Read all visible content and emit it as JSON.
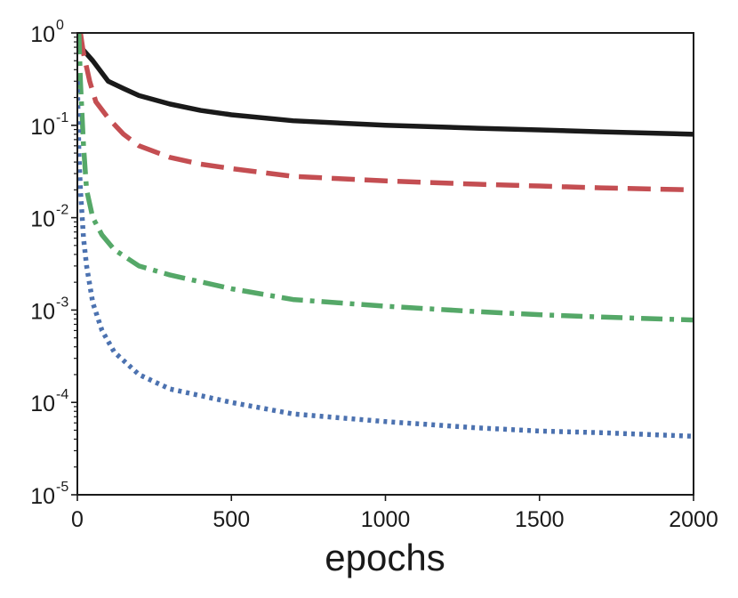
{
  "chart_data": {
    "type": "line",
    "title": "",
    "xlabel": "epochs",
    "ylabel": "",
    "xlim": [
      0,
      2000
    ],
    "ylim": [
      1e-05,
      1
    ],
    "yscale": "log",
    "grid": false,
    "legend": "none",
    "x_ticks": [
      {
        "value": 0,
        "label": "0"
      },
      {
        "value": 500,
        "label": "500"
      },
      {
        "value": 1000,
        "label": "1000"
      },
      {
        "value": 1500,
        "label": "1500"
      },
      {
        "value": 2000,
        "label": "2000"
      }
    ],
    "y_ticks": [
      {
        "value": 1,
        "base": "10",
        "exp": "0"
      },
      {
        "value": 0.1,
        "base": "10",
        "exp": "-1"
      },
      {
        "value": 0.01,
        "base": "10",
        "exp": "-2"
      },
      {
        "value": 0.001,
        "base": "10",
        "exp": "-3"
      },
      {
        "value": 0.0001,
        "base": "10",
        "exp": "-4"
      },
      {
        "value": 1e-05,
        "base": "10",
        "exp": "-5"
      }
    ],
    "series": [
      {
        "color": "#1a1a1a",
        "style": "solid",
        "x": [
          0,
          20,
          50,
          100,
          150,
          200,
          300,
          400,
          500,
          700,
          1000,
          1300,
          1500,
          1700,
          2000
        ],
        "y": [
          0.75,
          0.65,
          0.5,
          0.3,
          0.25,
          0.21,
          0.17,
          0.145,
          0.13,
          0.112,
          0.1,
          0.093,
          0.089,
          0.085,
          0.08
        ]
      },
      {
        "color": "#c44e52",
        "style": "dashed",
        "x": [
          10,
          20,
          40,
          60,
          100,
          150,
          200,
          300,
          400,
          500,
          700,
          1000,
          1300,
          1500,
          1700,
          2000
        ],
        "y": [
          1.0,
          0.6,
          0.3,
          0.18,
          0.12,
          0.08,
          0.06,
          0.045,
          0.038,
          0.034,
          0.028,
          0.025,
          0.023,
          0.022,
          0.021,
          0.02
        ]
      },
      {
        "color": "#55a868",
        "style": "dashdot",
        "x": [
          5,
          10,
          20,
          30,
          50,
          80,
          120,
          200,
          300,
          500,
          700,
          1000,
          1300,
          1500,
          1700,
          2000
        ],
        "y": [
          1.0,
          0.3,
          0.06,
          0.02,
          0.01,
          0.0065,
          0.0045,
          0.003,
          0.0024,
          0.0017,
          0.0013,
          0.0011,
          0.00096,
          0.00089,
          0.00084,
          0.00078
        ]
      },
      {
        "color": "#4c72b0",
        "style": "dotted",
        "x": [
          0,
          5,
          10,
          20,
          30,
          50,
          80,
          120,
          200,
          300,
          500,
          700,
          1000,
          1300,
          1500,
          1700,
          2000
        ],
        "y": [
          0.3,
          0.05,
          0.02,
          0.006,
          0.003,
          0.0012,
          0.0006,
          0.00035,
          0.0002,
          0.00014,
          0.0001,
          7.5e-05,
          6.2e-05,
          5.3e-05,
          4.9e-05,
          4.7e-05,
          4.3e-05
        ]
      }
    ]
  }
}
